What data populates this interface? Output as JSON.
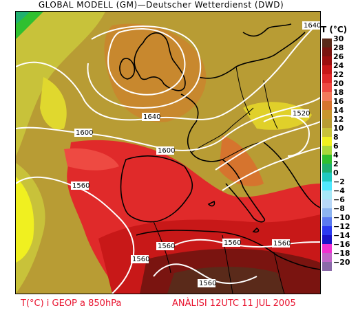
{
  "header": {
    "title": "GLOBAL MODELL (GM)—Deutscher Wetterdienst (DWD)"
  },
  "legend": {
    "title": "T (°C)",
    "items": [
      {
        "label": "30",
        "color": "#5a2a1a"
      },
      {
        "label": "28",
        "color": "#7a1410"
      },
      {
        "label": "26",
        "color": "#9c0f0f"
      },
      {
        "label": "24",
        "color": "#c81818"
      },
      {
        "label": "22",
        "color": "#e02a2a"
      },
      {
        "label": "20",
        "color": "#ee4a42"
      },
      {
        "label": "18",
        "color": "#f27a5a"
      },
      {
        "label": "16",
        "color": "#d6742e"
      },
      {
        "label": "14",
        "color": "#c8962e"
      },
      {
        "label": "12",
        "color": "#b89c34"
      },
      {
        "label": "10",
        "color": "#c8c23a"
      },
      {
        "label": "8",
        "color": "#f0f020"
      },
      {
        "label": "6",
        "color": "#a8d83a"
      },
      {
        "label": "4",
        "color": "#30c030"
      },
      {
        "label": "2",
        "color": "#20b070"
      },
      {
        "label": "0",
        "color": "#20c8c0"
      },
      {
        "label": "−2",
        "color": "#50e8ff"
      },
      {
        "label": "−4",
        "color": "#a8e8f8"
      },
      {
        "label": "−6",
        "color": "#b8d8f8"
      },
      {
        "label": "−8",
        "color": "#8cb4f0"
      },
      {
        "label": "−10",
        "color": "#5a7af0"
      },
      {
        "label": "−12",
        "color": "#2a3af0"
      },
      {
        "label": "−14",
        "color": "#1a14c8"
      },
      {
        "label": "−16",
        "color": "#f030d0"
      },
      {
        "label": "−18",
        "color": "#c068c8"
      },
      {
        "label": "−20",
        "color": "#8a6aa8"
      }
    ]
  },
  "contour_labels": {
    "c1640_ne": "1640",
    "c1640_c": "1640",
    "c1600_w": "1600",
    "c1600_c": "1600",
    "c1520": "1520",
    "c1560_w": "1560",
    "c1560_s1": "1560",
    "c1560_s2": "1560",
    "c1560_s3": "1560",
    "c1560_s4": "1560",
    "c1560_s5": "1560"
  },
  "footer": {
    "left": "T(°C) i GEOP a 850hPa",
    "right": "ANÀLISI 12UTC 11 JUL 2005"
  }
}
